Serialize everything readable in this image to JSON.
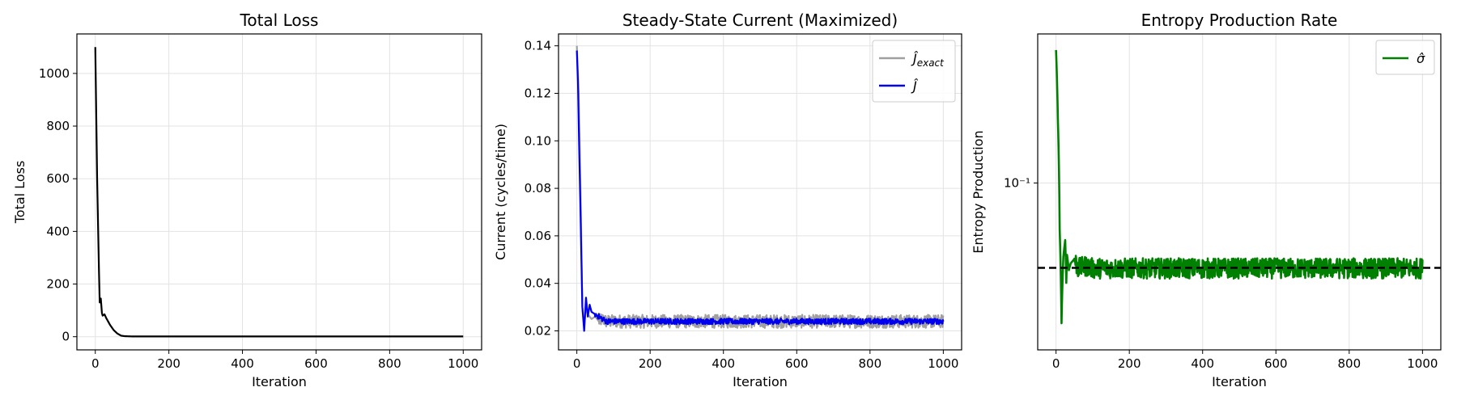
{
  "chart_data": [
    {
      "type": "line",
      "title": "Total Loss",
      "xlabel": "Iteration",
      "ylabel": "Total Loss",
      "xlim": [
        -50,
        1050
      ],
      "ylim": [
        -50,
        1150
      ],
      "xticks": [
        0,
        200,
        400,
        600,
        800,
        1000
      ],
      "yticks": [
        0,
        200,
        400,
        600,
        800,
        1000
      ],
      "grid": true,
      "yscale": "linear",
      "series": [
        {
          "color": "#000000",
          "x": [
            0,
            5,
            10,
            12,
            15,
            18,
            20,
            25,
            30,
            40,
            50,
            60,
            70,
            80,
            100,
            150,
            200,
            300,
            400,
            500,
            600,
            700,
            800,
            900,
            1000
          ],
          "y": [
            1100,
            600,
            250,
            130,
            145,
            90,
            80,
            85,
            70,
            45,
            25,
            12,
            4,
            2,
            1,
            1,
            1,
            1,
            1,
            1,
            1,
            1,
            1,
            1,
            1
          ]
        }
      ]
    },
    {
      "type": "line",
      "title": "Steady-State Current (Maximized)",
      "xlabel": "Iteration",
      "ylabel": "Current (cycles/time)",
      "xlim": [
        -50,
        1050
      ],
      "ylim": [
        0.012,
        0.145
      ],
      "xticks": [
        0,
        200,
        400,
        600,
        800,
        1000
      ],
      "yticks": [
        0.02,
        0.04,
        0.06,
        0.08,
        0.1,
        0.12,
        0.14
      ],
      "grid": true,
      "yscale": "linear",
      "legend_position": "top-right",
      "series": [
        {
          "name": "Ĵexact",
          "legend_base": "Ĵ",
          "legend_sub": "exact",
          "color": "#a0a0a0",
          "x": [
            0,
            5,
            10,
            15,
            20,
            25,
            30,
            40,
            50,
            60,
            70,
            80,
            100,
            1000
          ],
          "y": [
            0.14,
            0.12,
            0.08,
            0.03,
            0.022,
            0.03,
            0.027,
            0.025,
            0.026,
            0.024,
            0.025,
            0.024,
            0.024,
            0.024
          ],
          "noise_after": 60,
          "noise_amp": 0.0028
        },
        {
          "name": "Ĵ",
          "legend_base": "Ĵ",
          "legend_sub": "",
          "color": "#0000ee",
          "x": [
            0,
            3,
            6,
            10,
            15,
            20,
            25,
            30,
            35,
            40,
            50,
            60,
            70,
            80,
            100,
            1000
          ],
          "y": [
            0.138,
            0.125,
            0.1,
            0.07,
            0.03,
            0.02,
            0.034,
            0.026,
            0.031,
            0.028,
            0.027,
            0.026,
            0.025,
            0.024,
            0.024,
            0.024
          ],
          "noise_after": 50,
          "noise_amp": 0.0012
        }
      ]
    },
    {
      "type": "line",
      "title": "Entropy Production Rate",
      "xlabel": "Iteration",
      "ylabel": "Entropy Production",
      "xlim": [
        -50,
        1050
      ],
      "ylim": [
        0.0165,
        0.5
      ],
      "xticks": [
        0,
        200,
        400,
        600,
        800,
        1000
      ],
      "yticks": [
        0.1
      ],
      "ytick_labels": [
        "10⁻¹"
      ],
      "grid": true,
      "yscale": "log",
      "legend_position": "top-right",
      "reference_line": {
        "y": 0.04,
        "style": "dashed",
        "color": "#000000"
      },
      "series": [
        {
          "name": "σ̂",
          "legend_base": "σ̂",
          "legend_sub": "",
          "color": "#008000",
          "x": [
            0,
            5,
            10,
            15,
            20,
            25,
            28,
            30,
            35,
            40,
            50,
            60,
            80,
            100,
            1000
          ],
          "y": [
            0.42,
            0.2,
            0.06,
            0.022,
            0.045,
            0.054,
            0.034,
            0.046,
            0.039,
            0.042,
            0.044,
            0.04,
            0.041,
            0.04,
            0.04
          ],
          "noise_after": 50,
          "noise_amp": 0.11
        }
      ]
    }
  ]
}
